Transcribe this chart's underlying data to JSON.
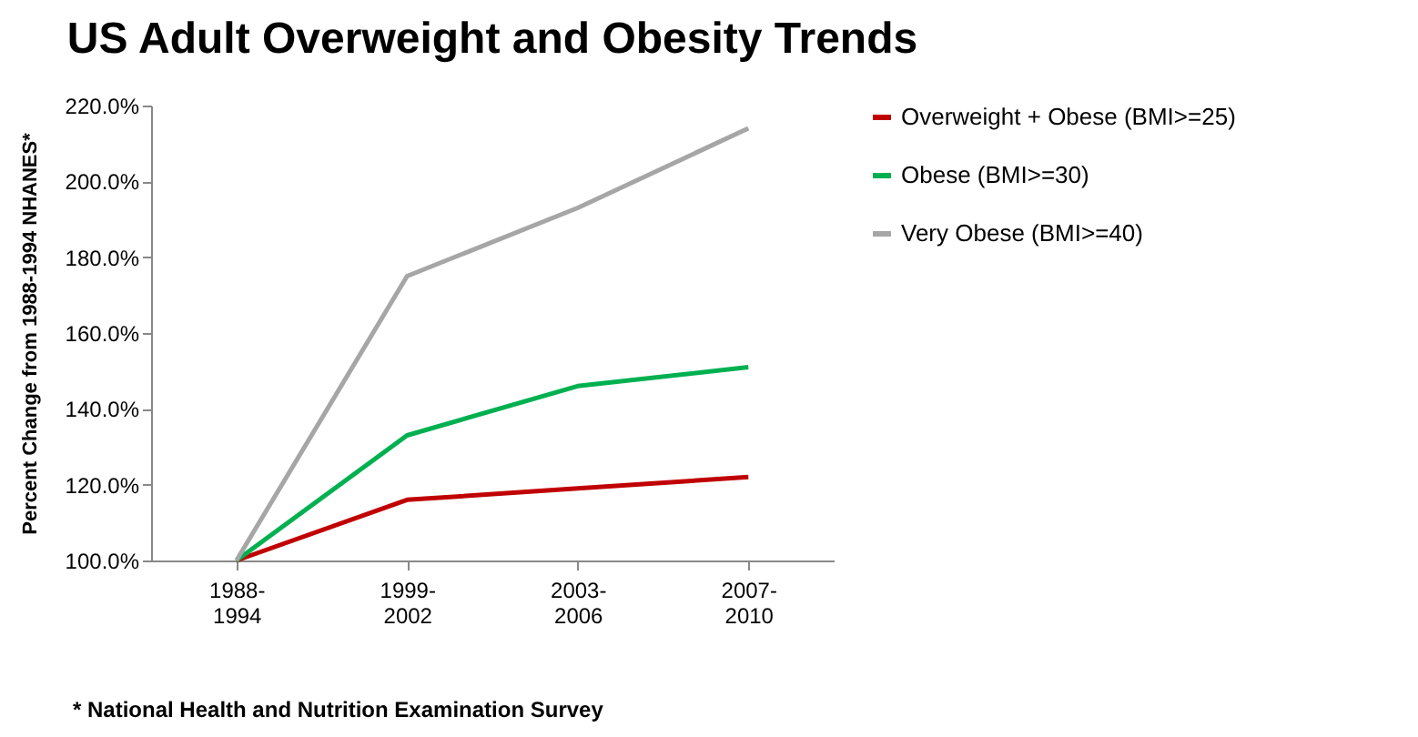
{
  "chart_data": {
    "type": "line",
    "title": "US Adult Overweight and Obesity Trends",
    "ylabel": "Percent Change from 1988-1994 NHANES*",
    "categories": [
      "1988-1994",
      "1999-2002",
      "2003-2006",
      "2007-2010"
    ],
    "series": [
      {
        "name": "Overweight + Obese (BMI>=25)",
        "color": "#c00000",
        "values": [
          100,
          116,
          119,
          122
        ]
      },
      {
        "name": "Obese (BMI>=30)",
        "color": "#00b050",
        "values": [
          100,
          133,
          146,
          151
        ]
      },
      {
        "name": "Very Obese (BMI>=40)",
        "color": "#a6a6a6",
        "values": [
          100,
          175,
          193,
          214
        ]
      }
    ],
    "ylim": [
      100,
      220
    ],
    "yticks": [
      {
        "value": 100,
        "label": "100.0%"
      },
      {
        "value": 120,
        "label": "120.0%"
      },
      {
        "value": 140,
        "label": "140.0%"
      },
      {
        "value": 160,
        "label": "160.0%"
      },
      {
        "value": 180,
        "label": "180.0%"
      },
      {
        "value": 200,
        "label": "200.0%"
      },
      {
        "value": 220,
        "label": "220.0%"
      }
    ],
    "grid": false,
    "legend": "right",
    "line_style": "solid",
    "annotations": [
      "* National Health and Nutrition Examination Survey"
    ]
  }
}
